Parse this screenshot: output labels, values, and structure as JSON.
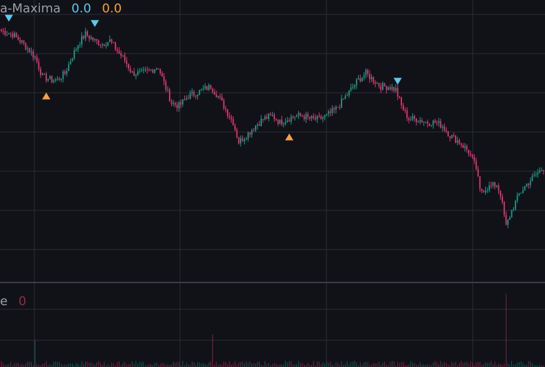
{
  "legend": {
    "indicator_label": "a-Maxima",
    "value_1": "0.0",
    "value_2": "0.0",
    "color_1": "#5cc8ee",
    "color_2": "#f5a142"
  },
  "volume_legend": {
    "indicator_label": "e",
    "value": "0",
    "color": "#8c2c48"
  },
  "colors": {
    "background": "#111217",
    "grid": "#2a2d35",
    "pane_divider": "#3a3d46",
    "up": "#1a9e8e",
    "down": "#e8356f",
    "volume_up": "#0f5e56",
    "volume_down": "#8a1f45",
    "maxima_marker": "#5cc8ee",
    "minima_marker": "#f5a142"
  },
  "chart_data": {
    "type": "candlestick",
    "description_source": "price axis not visible; values read in relative units (higher = higher price)",
    "price_range": [
      0,
      100
    ],
    "volume_range": [
      0,
      100
    ],
    "anchors": [
      [
        0,
        88
      ],
      [
        6,
        87
      ],
      [
        12,
        84
      ],
      [
        18,
        80
      ],
      [
        22,
        74
      ],
      [
        27,
        73
      ],
      [
        30,
        73
      ],
      [
        34,
        75
      ],
      [
        37,
        79
      ],
      [
        41,
        84
      ],
      [
        45,
        87
      ],
      [
        50,
        85
      ],
      [
        54,
        84
      ],
      [
        58,
        85
      ],
      [
        62,
        82
      ],
      [
        66,
        79
      ],
      [
        70,
        75
      ],
      [
        75,
        75
      ],
      [
        80,
        76
      ],
      [
        84,
        77
      ],
      [
        87,
        72
      ],
      [
        91,
        66
      ],
      [
        95,
        65
      ],
      [
        100,
        68
      ],
      [
        104,
        69
      ],
      [
        108,
        70
      ],
      [
        112,
        71
      ],
      [
        116,
        68
      ],
      [
        120,
        64
      ],
      [
        124,
        60
      ],
      [
        127,
        54
      ],
      [
        131,
        56
      ],
      [
        136,
        59
      ],
      [
        140,
        61
      ],
      [
        145,
        62
      ],
      [
        149,
        60
      ],
      [
        153,
        61
      ],
      [
        157,
        62
      ],
      [
        161,
        62
      ],
      [
        166,
        61
      ],
      [
        170,
        61
      ],
      [
        174,
        62
      ],
      [
        179,
        64
      ],
      [
        183,
        67
      ],
      [
        187,
        70
      ],
      [
        191,
        73
      ],
      [
        195,
        75
      ],
      [
        199,
        73
      ],
      [
        203,
        71
      ],
      [
        207,
        71
      ],
      [
        211,
        70
      ],
      [
        214,
        65
      ],
      [
        218,
        61
      ],
      [
        222,
        61
      ],
      [
        228,
        60
      ],
      [
        232,
        60
      ],
      [
        236,
        59
      ],
      [
        240,
        56
      ],
      [
        245,
        54
      ],
      [
        250,
        51
      ],
      [
        254,
        46
      ],
      [
        256,
        39
      ],
      [
        260,
        40
      ],
      [
        265,
        41
      ],
      [
        267,
        38
      ],
      [
        270,
        28
      ],
      [
        273,
        33
      ],
      [
        277,
        38
      ],
      [
        281,
        41
      ],
      [
        286,
        44
      ],
      [
        290,
        46
      ]
    ],
    "candle_count": 291,
    "seed": 7,
    "markers": [
      {
        "type": "maxima",
        "index": 4
      },
      {
        "type": "maxima",
        "index": 50
      },
      {
        "type": "minima",
        "index": 24
      },
      {
        "type": "minima",
        "index": 154
      },
      {
        "type": "maxima",
        "index": 212
      }
    ],
    "volume_spikes": [
      {
        "index": 18,
        "value": 35
      },
      {
        "index": 113,
        "value": 42
      },
      {
        "index": 270,
        "value": 95
      }
    ]
  }
}
